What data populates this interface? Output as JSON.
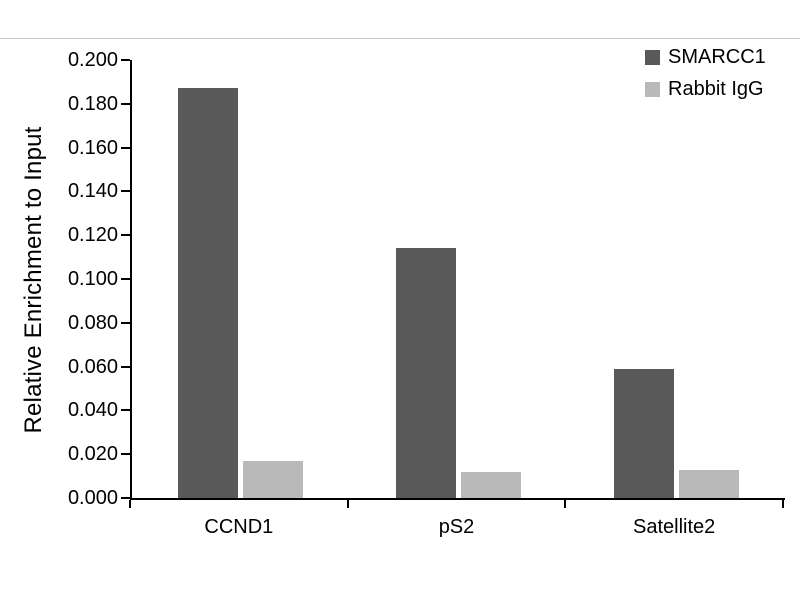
{
  "chart_data": {
    "type": "bar",
    "categories": [
      "CCND1",
      "pS2",
      "Satellite2"
    ],
    "series": [
      {
        "name": "SMARCC1",
        "color": "#595959",
        "values": [
          0.187,
          0.114,
          0.059
        ]
      },
      {
        "name": "Rabbit IgG",
        "color": "#b9b9b9",
        "values": [
          0.017,
          0.012,
          0.013
        ]
      }
    ],
    "title": "",
    "xlabel": "",
    "ylabel": "Relative Enrichment to Input",
    "ylim": [
      0,
      0.2
    ],
    "ytick_step": 0.02,
    "ytick_decimals": 3,
    "grid": false,
    "legend_position": "top-right",
    "axis_color": "#000000",
    "background_color": "#ffffff"
  }
}
